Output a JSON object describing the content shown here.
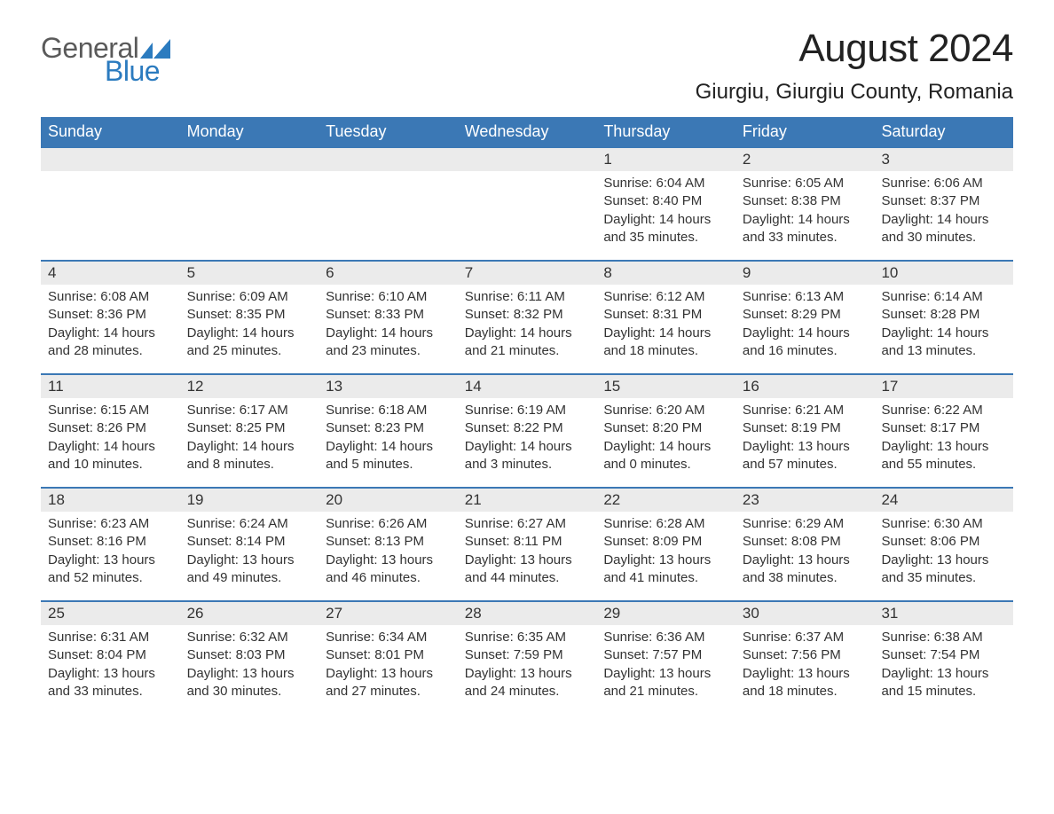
{
  "brand": {
    "word1": "General",
    "word2": "Blue",
    "accent_color": "#2b7bbf",
    "text_color": "#5a5a5a"
  },
  "title": "August 2024",
  "location": "Giurgiu, Giurgiu County, Romania",
  "colors": {
    "header_bg": "#3b78b5",
    "header_text": "#ffffff",
    "row_divider": "#3b78b5",
    "daybar_bg": "#ebebeb",
    "body_text": "#333333",
    "page_bg": "#ffffff"
  },
  "typography": {
    "title_fontsize": 44,
    "location_fontsize": 24,
    "weekday_fontsize": 18,
    "daynum_fontsize": 17,
    "body_fontsize": 15
  },
  "layout": {
    "columns": 7,
    "rows": 5,
    "leading_blanks": 4
  },
  "weekdays": [
    "Sunday",
    "Monday",
    "Tuesday",
    "Wednesday",
    "Thursday",
    "Friday",
    "Saturday"
  ],
  "labels": {
    "sunrise": "Sunrise",
    "sunset": "Sunset",
    "daylight": "Daylight"
  },
  "days": [
    {
      "n": 1,
      "sunrise": "6:04 AM",
      "sunset": "8:40 PM",
      "daylight": "14 hours and 35 minutes."
    },
    {
      "n": 2,
      "sunrise": "6:05 AM",
      "sunset": "8:38 PM",
      "daylight": "14 hours and 33 minutes."
    },
    {
      "n": 3,
      "sunrise": "6:06 AM",
      "sunset": "8:37 PM",
      "daylight": "14 hours and 30 minutes."
    },
    {
      "n": 4,
      "sunrise": "6:08 AM",
      "sunset": "8:36 PM",
      "daylight": "14 hours and 28 minutes."
    },
    {
      "n": 5,
      "sunrise": "6:09 AM",
      "sunset": "8:35 PM",
      "daylight": "14 hours and 25 minutes."
    },
    {
      "n": 6,
      "sunrise": "6:10 AM",
      "sunset": "8:33 PM",
      "daylight": "14 hours and 23 minutes."
    },
    {
      "n": 7,
      "sunrise": "6:11 AM",
      "sunset": "8:32 PM",
      "daylight": "14 hours and 21 minutes."
    },
    {
      "n": 8,
      "sunrise": "6:12 AM",
      "sunset": "8:31 PM",
      "daylight": "14 hours and 18 minutes."
    },
    {
      "n": 9,
      "sunrise": "6:13 AM",
      "sunset": "8:29 PM",
      "daylight": "14 hours and 16 minutes."
    },
    {
      "n": 10,
      "sunrise": "6:14 AM",
      "sunset": "8:28 PM",
      "daylight": "14 hours and 13 minutes."
    },
    {
      "n": 11,
      "sunrise": "6:15 AM",
      "sunset": "8:26 PM",
      "daylight": "14 hours and 10 minutes."
    },
    {
      "n": 12,
      "sunrise": "6:17 AM",
      "sunset": "8:25 PM",
      "daylight": "14 hours and 8 minutes."
    },
    {
      "n": 13,
      "sunrise": "6:18 AM",
      "sunset": "8:23 PM",
      "daylight": "14 hours and 5 minutes."
    },
    {
      "n": 14,
      "sunrise": "6:19 AM",
      "sunset": "8:22 PM",
      "daylight": "14 hours and 3 minutes."
    },
    {
      "n": 15,
      "sunrise": "6:20 AM",
      "sunset": "8:20 PM",
      "daylight": "14 hours and 0 minutes."
    },
    {
      "n": 16,
      "sunrise": "6:21 AM",
      "sunset": "8:19 PM",
      "daylight": "13 hours and 57 minutes."
    },
    {
      "n": 17,
      "sunrise": "6:22 AM",
      "sunset": "8:17 PM",
      "daylight": "13 hours and 55 minutes."
    },
    {
      "n": 18,
      "sunrise": "6:23 AM",
      "sunset": "8:16 PM",
      "daylight": "13 hours and 52 minutes."
    },
    {
      "n": 19,
      "sunrise": "6:24 AM",
      "sunset": "8:14 PM",
      "daylight": "13 hours and 49 minutes."
    },
    {
      "n": 20,
      "sunrise": "6:26 AM",
      "sunset": "8:13 PM",
      "daylight": "13 hours and 46 minutes."
    },
    {
      "n": 21,
      "sunrise": "6:27 AM",
      "sunset": "8:11 PM",
      "daylight": "13 hours and 44 minutes."
    },
    {
      "n": 22,
      "sunrise": "6:28 AM",
      "sunset": "8:09 PM",
      "daylight": "13 hours and 41 minutes."
    },
    {
      "n": 23,
      "sunrise": "6:29 AM",
      "sunset": "8:08 PM",
      "daylight": "13 hours and 38 minutes."
    },
    {
      "n": 24,
      "sunrise": "6:30 AM",
      "sunset": "8:06 PM",
      "daylight": "13 hours and 35 minutes."
    },
    {
      "n": 25,
      "sunrise": "6:31 AM",
      "sunset": "8:04 PM",
      "daylight": "13 hours and 33 minutes."
    },
    {
      "n": 26,
      "sunrise": "6:32 AM",
      "sunset": "8:03 PM",
      "daylight": "13 hours and 30 minutes."
    },
    {
      "n": 27,
      "sunrise": "6:34 AM",
      "sunset": "8:01 PM",
      "daylight": "13 hours and 27 minutes."
    },
    {
      "n": 28,
      "sunrise": "6:35 AM",
      "sunset": "7:59 PM",
      "daylight": "13 hours and 24 minutes."
    },
    {
      "n": 29,
      "sunrise": "6:36 AM",
      "sunset": "7:57 PM",
      "daylight": "13 hours and 21 minutes."
    },
    {
      "n": 30,
      "sunrise": "6:37 AM",
      "sunset": "7:56 PM",
      "daylight": "13 hours and 18 minutes."
    },
    {
      "n": 31,
      "sunrise": "6:38 AM",
      "sunset": "7:54 PM",
      "daylight": "13 hours and 15 minutes."
    }
  ]
}
